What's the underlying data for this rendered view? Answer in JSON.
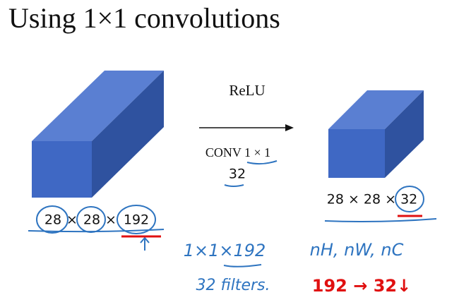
{
  "title": "Using 1×1 convolutions",
  "input": {
    "dims": [
      "28",
      "×",
      "28",
      "×",
      "192"
    ]
  },
  "operation": {
    "activation": "ReLU",
    "conv": "CONV 1 × 1",
    "filters": "32"
  },
  "output": {
    "dims": "28 × 28 × 32"
  },
  "notes": {
    "shape": "1×1×192",
    "filters": "32 filters.",
    "dim_names": "nH, nW, nC",
    "change": "192 → 32↓"
  }
}
